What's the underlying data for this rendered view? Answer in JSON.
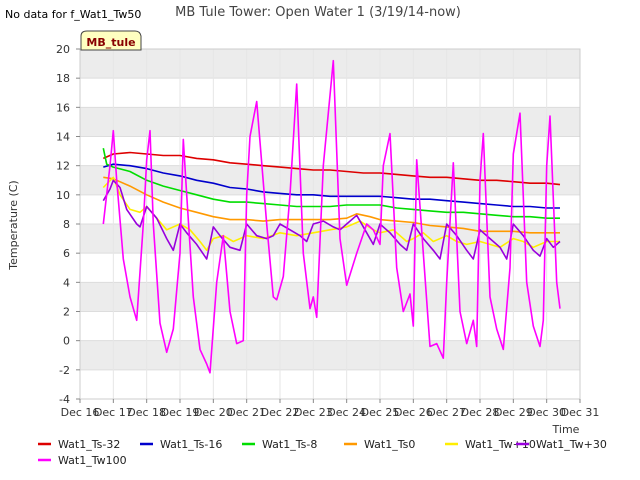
{
  "chart_data": {
    "type": "line",
    "title": "MB Tule Tower: Open Water 1 (3/19/14-now)",
    "subtitle": "",
    "no_data_note": "No data for f_Wat1_Tw50",
    "site_badge": "MB_tule",
    "xlabel": "Time",
    "ylabel": "Temperature (C)",
    "xlim": [
      16,
      31
    ],
    "ylim": [
      -4,
      20
    ],
    "x_ticks": [
      16,
      17,
      18,
      19,
      20,
      21,
      22,
      23,
      24,
      25,
      26,
      27,
      28,
      29,
      30,
      31
    ],
    "x_tick_labels": [
      "Dec 16",
      "Dec 17",
      "Dec 18",
      "Dec 19",
      "Dec 20",
      "Dec 21",
      "Dec 22",
      "Dec 23",
      "Dec 24",
      "Dec 25",
      "Dec 26",
      "Dec 27",
      "Dec 28",
      "Dec 29",
      "Dec 30",
      "Dec 31"
    ],
    "y_ticks": [
      -4,
      -2,
      0,
      2,
      4,
      6,
      8,
      10,
      12,
      14,
      16,
      18,
      20
    ],
    "y_tick_labels": [
      "-4",
      "-2",
      "0",
      "2",
      "4",
      "6",
      "8",
      "10",
      "12",
      "14",
      "16",
      "18",
      "20"
    ],
    "grid": true,
    "band_color": "#ececec",
    "legend_position": "bottom",
    "series": [
      {
        "name": "Wat1_Ts-32",
        "color": "#dd0000",
        "x": [
          16.7,
          17.0,
          17.5,
          18.0,
          18.5,
          19.0,
          19.5,
          20.0,
          20.5,
          21.0,
          21.5,
          22.0,
          22.5,
          23.0,
          23.5,
          24.0,
          24.5,
          25.0,
          25.5,
          26.0,
          26.5,
          27.0,
          27.5,
          28.0,
          28.5,
          29.0,
          29.5,
          30.0,
          30.4
        ],
        "y": [
          12.5,
          12.8,
          12.9,
          12.8,
          12.7,
          12.7,
          12.5,
          12.4,
          12.2,
          12.1,
          12.0,
          11.9,
          11.8,
          11.7,
          11.7,
          11.6,
          11.5,
          11.5,
          11.4,
          11.3,
          11.2,
          11.2,
          11.1,
          11.0,
          11.0,
          10.9,
          10.8,
          10.8,
          10.7
        ]
      },
      {
        "name": "Wat1_Ts-16",
        "color": "#0000cc",
        "x": [
          16.7,
          17.0,
          17.5,
          18.0,
          18.5,
          19.0,
          19.5,
          20.0,
          20.5,
          21.0,
          21.5,
          22.0,
          22.5,
          23.0,
          23.5,
          24.0,
          24.5,
          25.0,
          25.5,
          26.0,
          26.5,
          27.0,
          27.5,
          28.0,
          28.5,
          29.0,
          29.5,
          30.0,
          30.4
        ],
        "y": [
          11.9,
          12.1,
          12.0,
          11.8,
          11.5,
          11.3,
          11.0,
          10.8,
          10.5,
          10.4,
          10.2,
          10.1,
          10.0,
          10.0,
          9.9,
          9.9,
          9.9,
          9.9,
          9.8,
          9.7,
          9.7,
          9.6,
          9.5,
          9.4,
          9.3,
          9.2,
          9.2,
          9.1,
          9.1
        ]
      },
      {
        "name": "Wat1_Ts-8",
        "color": "#00dd00",
        "x": [
          16.7,
          16.8,
          17.0,
          17.5,
          18.0,
          18.5,
          19.0,
          19.5,
          20.0,
          20.5,
          21.0,
          21.5,
          22.0,
          22.5,
          23.0,
          23.5,
          24.0,
          24.5,
          25.0,
          25.5,
          26.0,
          26.5,
          27.0,
          27.5,
          28.0,
          28.5,
          29.0,
          29.5,
          30.0,
          30.4
        ],
        "y": [
          13.2,
          12.1,
          11.9,
          11.6,
          11.0,
          10.6,
          10.3,
          10.0,
          9.7,
          9.5,
          9.5,
          9.4,
          9.3,
          9.2,
          9.2,
          9.2,
          9.3,
          9.3,
          9.3,
          9.1,
          9.0,
          8.9,
          8.8,
          8.8,
          8.7,
          8.6,
          8.5,
          8.5,
          8.4,
          8.4
        ]
      },
      {
        "name": "Wat1_Ts0",
        "color": "#ff9900",
        "x": [
          16.7,
          17.0,
          17.5,
          18.0,
          18.5,
          19.0,
          19.5,
          20.0,
          20.5,
          21.0,
          21.5,
          22.0,
          22.5,
          23.0,
          23.5,
          24.0,
          24.3,
          24.7,
          25.0,
          25.5,
          26.0,
          26.5,
          27.0,
          27.5,
          28.0,
          28.5,
          29.0,
          29.5,
          30.0,
          30.4
        ],
        "y": [
          11.2,
          11.1,
          10.6,
          10.0,
          9.5,
          9.1,
          8.8,
          8.5,
          8.3,
          8.3,
          8.2,
          8.3,
          8.3,
          8.3,
          8.3,
          8.4,
          8.7,
          8.5,
          8.3,
          8.2,
          8.1,
          7.9,
          7.8,
          7.7,
          7.5,
          7.5,
          7.5,
          7.4,
          7.4,
          7.4
        ]
      },
      {
        "name": "Wat1_Tw+10",
        "color": "#ffee00",
        "x": [
          16.7,
          17.0,
          17.2,
          17.5,
          17.8,
          18.0,
          18.3,
          18.6,
          19.0,
          19.3,
          19.6,
          19.8,
          20.0,
          20.3,
          20.6,
          21.0,
          21.5,
          22.0,
          22.5,
          23.0,
          23.5,
          24.0,
          24.4,
          24.8,
          25.0,
          25.4,
          25.8,
          26.0,
          26.3,
          26.6,
          27.0,
          27.3,
          27.6,
          28.0,
          28.3,
          28.6,
          29.0,
          29.3,
          29.6,
          30.0,
          30.4
        ],
        "y": [
          10.5,
          11.2,
          10.0,
          9.0,
          8.8,
          9.2,
          8.4,
          7.6,
          8.0,
          7.6,
          6.8,
          6.2,
          7.0,
          7.2,
          6.8,
          7.2,
          7.0,
          7.4,
          7.2,
          7.4,
          7.6,
          7.8,
          8.2,
          7.6,
          7.4,
          7.6,
          6.8,
          7.0,
          7.4,
          6.8,
          7.2,
          6.8,
          6.6,
          6.8,
          6.6,
          6.4,
          7.0,
          6.8,
          6.4,
          6.8,
          6.8
        ]
      },
      {
        "name": "Wat1_Tw+30",
        "color": "#9900dd",
        "x": [
          16.7,
          16.9,
          17.0,
          17.2,
          17.4,
          17.7,
          17.8,
          18.0,
          18.3,
          18.6,
          18.8,
          19.0,
          19.2,
          19.5,
          19.8,
          20.0,
          20.2,
          20.5,
          20.8,
          21.0,
          21.3,
          21.6,
          21.8,
          22.0,
          22.3,
          22.6,
          22.8,
          23.0,
          23.3,
          23.6,
          23.8,
          24.0,
          24.3,
          24.6,
          24.8,
          25.0,
          25.3,
          25.6,
          25.8,
          26.0,
          26.3,
          26.6,
          26.8,
          27.0,
          27.3,
          27.6,
          27.8,
          28.0,
          28.3,
          28.6,
          28.8,
          29.0,
          29.3,
          29.6,
          29.8,
          30.0,
          30.2,
          30.4
        ],
        "y": [
          9.6,
          10.4,
          11.0,
          10.5,
          9.0,
          8.0,
          7.8,
          9.2,
          8.4,
          7.0,
          6.2,
          8.0,
          7.4,
          6.6,
          5.6,
          7.8,
          7.2,
          6.4,
          6.2,
          8.0,
          7.2,
          7.0,
          7.2,
          8.0,
          7.6,
          7.2,
          6.8,
          8.0,
          8.2,
          7.8,
          7.6,
          8.0,
          8.6,
          7.4,
          6.6,
          8.0,
          7.4,
          6.6,
          6.2,
          8.0,
          7.0,
          6.2,
          5.6,
          8.0,
          7.2,
          6.2,
          5.6,
          7.6,
          7.0,
          6.4,
          5.6,
          8.0,
          7.2,
          6.2,
          5.8,
          7.0,
          6.4,
          6.8
        ]
      },
      {
        "name": "Wat1_Tw100",
        "color": "#ff00ff",
        "x": [
          16.7,
          16.9,
          17.0,
          17.1,
          17.3,
          17.5,
          17.7,
          17.9,
          18.0,
          18.1,
          18.2,
          18.4,
          18.6,
          18.8,
          19.0,
          19.1,
          19.2,
          19.4,
          19.6,
          19.8,
          19.9,
          20.1,
          20.3,
          20.5,
          20.7,
          20.9,
          21.0,
          21.1,
          21.3,
          21.6,
          21.8,
          21.9,
          22.1,
          22.3,
          22.5,
          22.7,
          22.9,
          23.0,
          23.1,
          23.3,
          23.6,
          23.8,
          24.0,
          24.3,
          24.6,
          24.8,
          25.0,
          25.1,
          25.3,
          25.5,
          25.7,
          25.9,
          26.0,
          26.1,
          26.3,
          26.5,
          26.7,
          26.9,
          27.0,
          27.2,
          27.4,
          27.6,
          27.8,
          27.9,
          28.0,
          28.1,
          28.3,
          28.5,
          28.7,
          28.9,
          29.0,
          29.2,
          29.4,
          29.6,
          29.8,
          29.9,
          30.0,
          30.1,
          30.3,
          30.4
        ],
        "y": [
          8.0,
          12.0,
          14.4,
          11.0,
          5.6,
          3.0,
          1.4,
          8.0,
          12.4,
          14.4,
          8.0,
          1.2,
          -0.8,
          0.8,
          6.0,
          13.8,
          10.0,
          3.0,
          -0.6,
          -1.6,
          -2.2,
          4.0,
          7.2,
          2.0,
          -0.2,
          0.0,
          10.0,
          14.0,
          16.4,
          8.0,
          3.0,
          2.8,
          4.4,
          10.0,
          17.6,
          6.0,
          2.2,
          3.0,
          1.6,
          12.0,
          19.2,
          7.0,
          3.8,
          6.0,
          8.0,
          7.6,
          6.6,
          12.0,
          14.2,
          5.0,
          2.0,
          3.2,
          1.0,
          12.4,
          6.0,
          -0.4,
          -0.2,
          -1.2,
          4.0,
          12.2,
          2.0,
          -0.2,
          1.4,
          -0.4,
          11.0,
          14.2,
          3.0,
          0.8,
          -0.6,
          5.0,
          12.8,
          15.6,
          4.0,
          1.0,
          -0.4,
          1.4,
          12.0,
          15.4,
          4.0,
          2.2
        ]
      }
    ],
    "legend_rows": [
      [
        "Wat1_Ts-32",
        "Wat1_Ts-16",
        "Wat1_Ts-8",
        "Wat1_Ts0",
        "Wat1_Tw+10",
        "Wat1_Tw+30"
      ],
      [
        "Wat1_Tw100"
      ]
    ]
  }
}
